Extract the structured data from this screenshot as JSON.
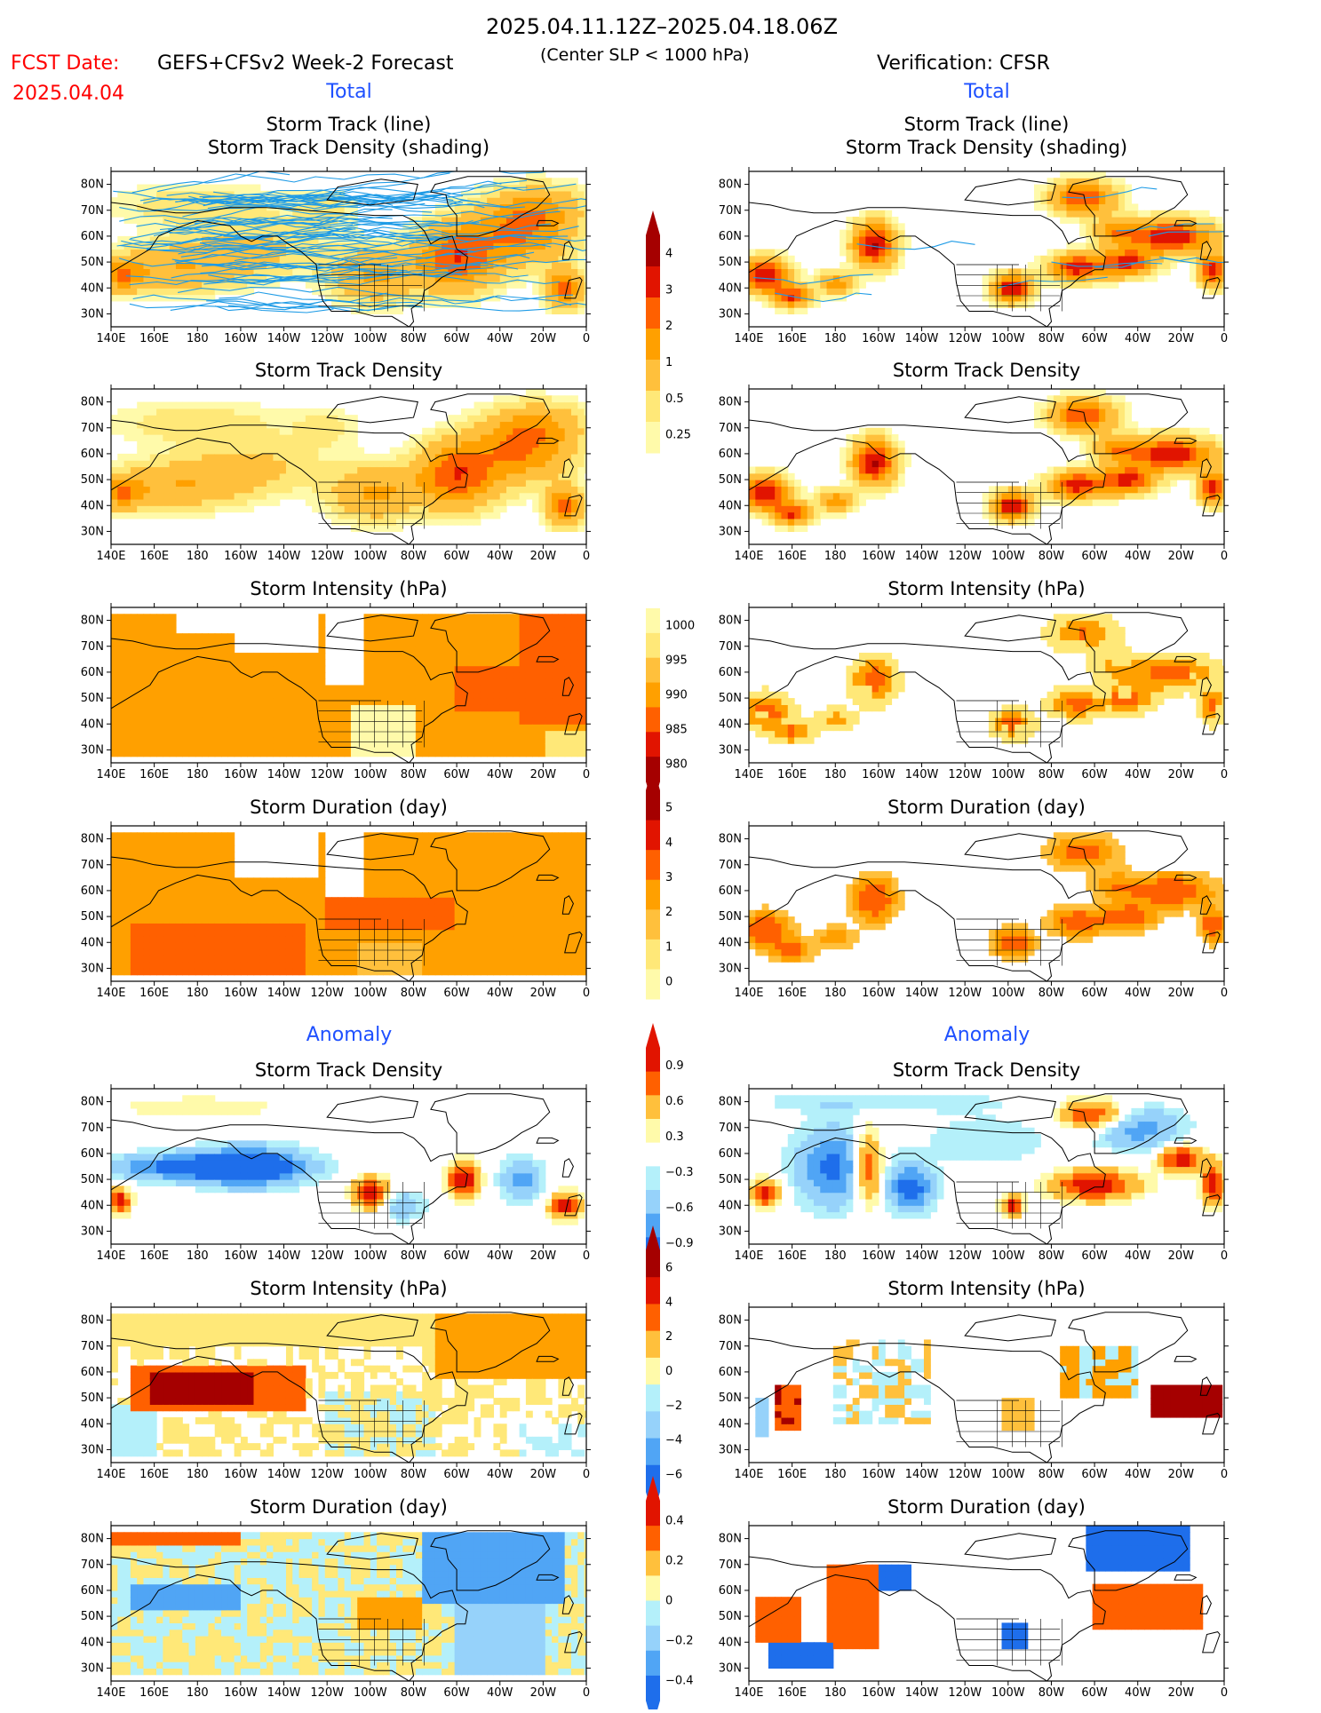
{
  "header": {
    "date_range": "2025.04.11.12Z–2025.04.18.06Z",
    "fcst_label": "FCST Date:",
    "fcst_date": "2025.04.04",
    "model": "GEFS+CFSv2 Week-2 Forecast",
    "criterion": "(Center SLP < 1000 hPa)",
    "verification": "Verification: CFSR"
  },
  "sections": {
    "total": "Total",
    "anomaly": "Anomaly"
  },
  "colors": {
    "warm": [
      "#FFFAAA",
      "#FFE878",
      "#FFC03C",
      "#FFA000",
      "#FF6000",
      "#E11400",
      "#A50000"
    ],
    "cool": [
      "#B4F0FA",
      "#96D2FA",
      "#50A5F5",
      "#1E6EEB"
    ],
    "track_line": "#1E9BE6",
    "title_blue": "#0000FF",
    "fcst_red": "#FF0000"
  },
  "chart_data": [
    {
      "type": "heatmap",
      "column": "GEFS+CFSv2 Week-2 Forecast",
      "section": "Total",
      "title": "Storm Track (line)",
      "subtitle": "Storm Track Density (shading)",
      "x_ticks": [
        "140E",
        "160E",
        "180",
        "160W",
        "140W",
        "120W",
        "100W",
        "80W",
        "60W",
        "40W",
        "20W",
        "0"
      ],
      "y_ticks": [
        "30N",
        "40N",
        "50N",
        "60N",
        "70N",
        "80N"
      ],
      "lon_range": [
        140,
        360
      ],
      "lat_range": [
        25,
        85
      ],
      "peak_regions": [
        {
          "lon": 180,
          "lat": 50,
          "level": "1-2"
        },
        {
          "lon": 300,
          "lat": 55,
          "level": "2-3"
        },
        {
          "lon": 345,
          "lat": 40,
          "level": "2-3"
        }
      ]
    },
    {
      "type": "heatmap",
      "column": "CFSR",
      "section": "Total",
      "title": "Storm Track (line)",
      "subtitle": "Storm Track Density (shading)",
      "x_ticks": [
        "140E",
        "160E",
        "180",
        "160W",
        "140W",
        "120W",
        "100W",
        "80W",
        "60W",
        "40W",
        "20W",
        "0"
      ],
      "y_ticks": [
        "30N",
        "40N",
        "50N",
        "60N",
        "70N",
        "80N"
      ],
      "lon_range": [
        140,
        360
      ],
      "lat_range": [
        25,
        85
      ],
      "peak_regions": [
        {
          "lon": 150,
          "lat": 45,
          "level": ">4"
        },
        {
          "lon": 160,
          "lat": 37,
          "level": "3-4"
        },
        {
          "lon": 200,
          "lat": 58,
          "level": ">4"
        },
        {
          "lon": 260,
          "lat": 40,
          "level": ">4"
        },
        {
          "lon": 300,
          "lat": 50,
          "level": ">4"
        },
        {
          "lon": 340,
          "lat": 62,
          "level": ">4"
        },
        {
          "lon": 295,
          "lat": 75,
          "level": "3-4"
        }
      ]
    },
    {
      "type": "heatmap",
      "column": "GEFS+CFSv2 Week-2 Forecast",
      "section": "Total",
      "title": "Storm Track Density",
      "x_ticks": [
        "140E",
        "160E",
        "180",
        "160W",
        "140W",
        "120W",
        "100W",
        "80W",
        "60W",
        "40W",
        "20W",
        "0"
      ],
      "y_ticks": [
        "30N",
        "40N",
        "50N",
        "60N",
        "70N",
        "80N"
      ],
      "peak_regions": [
        {
          "lon": 145,
          "lat": 45,
          "level": "2-3"
        },
        {
          "lon": 260,
          "lat": 45,
          "level": "3-4"
        },
        {
          "lon": 305,
          "lat": 52,
          "level": ">4"
        },
        {
          "lon": 330,
          "lat": 62,
          "level": "3-4"
        },
        {
          "lon": 350,
          "lat": 40,
          "level": "3-4"
        }
      ]
    },
    {
      "type": "heatmap",
      "column": "CFSR",
      "section": "Total",
      "title": "Storm Track Density",
      "x_ticks": [
        "140E",
        "160E",
        "180",
        "160W",
        "140W",
        "120W",
        "100W",
        "80W",
        "60W",
        "40W",
        "20W",
        "0"
      ],
      "y_ticks": [
        "30N",
        "40N",
        "50N",
        "60N",
        "70N",
        "80N"
      ],
      "peak_regions": [
        {
          "lon": 150,
          "lat": 45,
          "level": ">4"
        },
        {
          "lon": 200,
          "lat": 58,
          "level": ">4"
        },
        {
          "lon": 260,
          "lat": 40,
          "level": ">4"
        },
        {
          "lon": 305,
          "lat": 52,
          "level": ">4"
        },
        {
          "lon": 340,
          "lat": 62,
          "level": ">4"
        }
      ]
    },
    {
      "type": "heatmap",
      "column": "GEFS+CFSv2 Week-2 Forecast",
      "section": "Total",
      "title": "Storm Intensity (hPa)",
      "x_ticks": [
        "140E",
        "160E",
        "180",
        "160W",
        "140W",
        "120W",
        "100W",
        "80W",
        "60W",
        "40W",
        "20W",
        "0"
      ],
      "y_ticks": [
        "30N",
        "40N",
        "50N",
        "60N",
        "70N",
        "80N"
      ],
      "typical_range_hPa": [
        990,
        1000
      ]
    },
    {
      "type": "heatmap",
      "column": "CFSR",
      "section": "Total",
      "title": "Storm Intensity (hPa)",
      "x_ticks": [
        "140E",
        "160E",
        "180",
        "160W",
        "140W",
        "120W",
        "100W",
        "80W",
        "60W",
        "40W",
        "20W",
        "0"
      ],
      "y_ticks": [
        "30N",
        "40N",
        "50N",
        "60N",
        "70N",
        "80N"
      ],
      "typical_range_hPa": [
        985,
        1000
      ]
    },
    {
      "type": "heatmap",
      "column": "GEFS+CFSv2 Week-2 Forecast",
      "section": "Total",
      "title": "Storm Duration (day)",
      "x_ticks": [
        "140E",
        "160E",
        "180",
        "160W",
        "140W",
        "120W",
        "100W",
        "80W",
        "60W",
        "40W",
        "20W",
        "0"
      ],
      "y_ticks": [
        "30N",
        "40N",
        "50N",
        "60N",
        "70N",
        "80N"
      ],
      "typical_range_day": [
        2,
        4
      ]
    },
    {
      "type": "heatmap",
      "column": "CFSR",
      "section": "Total",
      "title": "Storm Duration (day)",
      "x_ticks": [
        "140E",
        "160E",
        "180",
        "160W",
        "140W",
        "120W",
        "100W",
        "80W",
        "60W",
        "40W",
        "20W",
        "0"
      ],
      "y_ticks": [
        "30N",
        "40N",
        "50N",
        "60N",
        "70N",
        "80N"
      ],
      "typical_range_day": [
        2,
        5
      ]
    },
    {
      "type": "heatmap",
      "column": "GEFS+CFSv2 Week-2 Forecast",
      "section": "Anomaly",
      "title": "Storm Track Density",
      "x_ticks": [
        "140E",
        "160E",
        "180",
        "160W",
        "140W",
        "120W",
        "100W",
        "80W",
        "60W",
        "40W",
        "20W",
        "0"
      ],
      "y_ticks": [
        "30N",
        "40N",
        "50N",
        "60N",
        "70N",
        "80N"
      ],
      "typical_range": [
        -0.9,
        0.9
      ]
    },
    {
      "type": "heatmap",
      "column": "CFSR",
      "section": "Anomaly",
      "title": "Storm Track Density",
      "x_ticks": [
        "140E",
        "160E",
        "180",
        "160W",
        "140W",
        "120W",
        "100W",
        "80W",
        "60W",
        "40W",
        "20W",
        "0"
      ],
      "y_ticks": [
        "30N",
        "40N",
        "50N",
        "60N",
        "70N",
        "80N"
      ],
      "typical_range": [
        -0.9,
        0.9
      ]
    },
    {
      "type": "heatmap",
      "column": "GEFS+CFSv2 Week-2 Forecast",
      "section": "Anomaly",
      "title": "Storm Intensity (hPa)",
      "x_ticks": [
        "140E",
        "160E",
        "180",
        "160W",
        "140W",
        "120W",
        "100W",
        "80W",
        "60W",
        "40W",
        "20W",
        "0"
      ],
      "y_ticks": [
        "30N",
        "40N",
        "50N",
        "60N",
        "70N",
        "80N"
      ],
      "typical_range": [
        -2,
        6
      ]
    },
    {
      "type": "heatmap",
      "column": "CFSR",
      "section": "Anomaly",
      "title": "Storm Intensity (hPa)",
      "x_ticks": [
        "140E",
        "160E",
        "180",
        "160W",
        "140W",
        "120W",
        "100W",
        "80W",
        "60W",
        "40W",
        "20W",
        "0"
      ],
      "y_ticks": [
        "30N",
        "40N",
        "50N",
        "60N",
        "70N",
        "80N"
      ],
      "typical_range": [
        -4,
        6
      ]
    },
    {
      "type": "heatmap",
      "column": "GEFS+CFSv2 Week-2 Forecast",
      "section": "Anomaly",
      "title": "Storm Duration (day)",
      "x_ticks": [
        "140E",
        "160E",
        "180",
        "160W",
        "140W",
        "120W",
        "100W",
        "80W",
        "60W",
        "40W",
        "20W",
        "0"
      ],
      "y_ticks": [
        "30N",
        "40N",
        "50N",
        "60N",
        "70N",
        "80N"
      ],
      "typical_range": [
        -0.4,
        0.4
      ]
    },
    {
      "type": "heatmap",
      "column": "CFSR",
      "section": "Anomaly",
      "title": "Storm Duration (day)",
      "x_ticks": [
        "140E",
        "160E",
        "180",
        "160W",
        "140W",
        "120W",
        "100W",
        "80W",
        "60W",
        "40W",
        "20W",
        "0"
      ],
      "y_ticks": [
        "30N",
        "40N",
        "50N",
        "60N",
        "70N",
        "80N"
      ],
      "typical_range": [
        -0.4,
        0.4
      ]
    }
  ],
  "colorbars": [
    {
      "name": "Storm Track Density",
      "labels": [
        "4",
        "3",
        "2",
        "1",
        "0.5",
        "0.25"
      ]
    },
    {
      "name": "Storm Intensity (hPa)",
      "labels": [
        "1000",
        "995",
        "990",
        "985",
        "980"
      ]
    },
    {
      "name": "Storm Duration (day)",
      "labels": [
        "5",
        "4",
        "3",
        "2",
        "1",
        "0"
      ]
    },
    {
      "name": "Storm Track Density anomaly",
      "labels": [
        "0.9",
        "0.6",
        "0.3",
        "−0.3",
        "−0.6",
        "−0.9"
      ]
    },
    {
      "name": "Storm Intensity anomaly (hPa)",
      "labels": [
        "6",
        "4",
        "2",
        "0",
        "−2",
        "−4",
        "−6"
      ]
    },
    {
      "name": "Storm Duration anomaly (day)",
      "labels": [
        "0.4",
        "0.2",
        "0",
        "−0.2",
        "−0.4"
      ]
    }
  ]
}
